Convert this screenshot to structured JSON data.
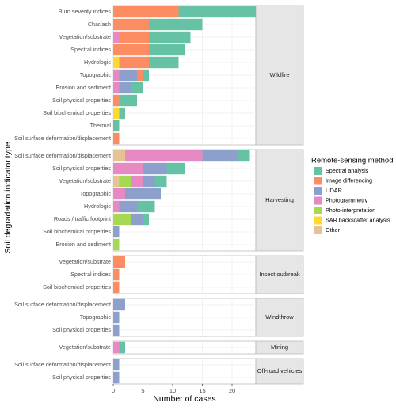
{
  "chart_data": {
    "type": "bar",
    "orientation": "horizontal",
    "stacked": true,
    "x_label": "Number of cases",
    "y_label": "Soil degradation indicator type",
    "xlim": [
      0,
      24
    ],
    "xticks": [
      0,
      5,
      10,
      15,
      20
    ],
    "grid": true,
    "legend_title": "Remote-sensing method",
    "legend_position": "right",
    "series": [
      {
        "name": "Spectral analysis",
        "color": "#66c2a5"
      },
      {
        "name": "Image differencing",
        "color": "#fc8d62"
      },
      {
        "name": "LiDAR",
        "color": "#8da0cb"
      },
      {
        "name": "Photogrammetry",
        "color": "#e78ac3"
      },
      {
        "name": "Photo-interpretation",
        "color": "#a6d854"
      },
      {
        "name": "SAR backscatter analysis",
        "color": "#ffd92f"
      },
      {
        "name": "Other",
        "color": "#e5c494"
      }
    ],
    "facets": [
      {
        "label": "Wildfire",
        "categories": [
          "Burn severity indices",
          "Char/ash",
          "Vegetation/substrate",
          "Spectral indices",
          "Hydrologic",
          "Topographic",
          "Erosion and sediment",
          "Soil physical properties",
          "Soil biochemical properties",
          "Thermal",
          "Soil surface deformation/displacement"
        ],
        "values": [
          [
            13,
            9,
            7,
            6,
            5,
            1,
            2,
            3,
            1,
            1,
            0
          ],
          [
            11,
            6,
            5,
            6,
            5,
            1,
            0,
            1,
            0,
            0,
            1
          ],
          [
            0,
            0,
            0,
            0,
            0,
            3,
            2,
            0,
            0,
            0,
            0
          ],
          [
            0,
            0,
            1,
            0,
            0,
            1,
            1,
            0,
            0,
            0,
            0
          ],
          [
            0,
            0,
            0,
            0,
            0,
            0,
            0,
            0,
            0,
            0,
            0
          ],
          [
            0,
            0,
            0,
            0,
            1,
            0,
            0,
            0,
            1,
            0,
            0
          ],
          [
            0,
            0,
            0,
            0,
            0,
            0,
            0,
            0,
            0,
            0,
            0
          ]
        ]
      },
      {
        "label": "Harvesting",
        "categories": [
          "Soil surface deformation/displacement",
          "Soil physical properties",
          "Vegetation/substrate",
          "Topographic",
          "Hydrologic",
          "Roads / traffic footprint",
          "Soil biochemical properties",
          "Erosion and sediment"
        ],
        "values": [
          [
            2,
            3,
            2,
            0,
            3,
            1,
            0,
            0
          ],
          [
            0,
            0,
            0,
            0,
            0,
            0,
            0,
            0
          ],
          [
            6,
            4,
            2,
            6,
            3,
            2,
            1,
            0
          ],
          [
            13,
            5,
            2,
            2,
            1,
            0,
            0,
            0
          ],
          [
            0,
            0,
            2,
            0,
            0,
            3,
            0,
            1
          ],
          [
            0,
            0,
            0,
            0,
            0,
            0,
            0,
            0
          ],
          [
            2,
            0,
            1,
            0,
            0,
            0,
            0,
            0
          ]
        ]
      },
      {
        "label": "Insect outbreak",
        "categories": [
          "Vegetation/substrate",
          "Spectral indices",
          "Soil biochemical properties"
        ],
        "values": [
          [
            0,
            0,
            0
          ],
          [
            2,
            1,
            1
          ],
          [
            0,
            0,
            0
          ],
          [
            0,
            0,
            0
          ],
          [
            0,
            0,
            0
          ],
          [
            0,
            0,
            0
          ],
          [
            0,
            0,
            0
          ]
        ]
      },
      {
        "label": "Windthrow",
        "categories": [
          "Soil surface deformation/displacement",
          "Topographic",
          "Soil physical properties"
        ],
        "values": [
          [
            0,
            0,
            0
          ],
          [
            0,
            0,
            0
          ],
          [
            2,
            1,
            1
          ],
          [
            0,
            0,
            0
          ],
          [
            0,
            0,
            0
          ],
          [
            0,
            0,
            0
          ],
          [
            0,
            0,
            0
          ]
        ]
      },
      {
        "label": "Mining",
        "categories": [
          "Vegetation/substrate"
        ],
        "values": [
          [
            1
          ],
          [
            0
          ],
          [
            0
          ],
          [
            1
          ],
          [
            0
          ],
          [
            0
          ],
          [
            0
          ]
        ]
      },
      {
        "label": "Off-road vehicles",
        "categories": [
          "Soil surface deformation/displacement",
          "Soil physical properties"
        ],
        "values": [
          [
            0,
            0
          ],
          [
            0,
            0
          ],
          [
            1,
            1
          ],
          [
            0,
            0
          ],
          [
            0,
            0
          ],
          [
            0,
            0
          ],
          [
            0,
            0
          ]
        ]
      }
    ]
  }
}
